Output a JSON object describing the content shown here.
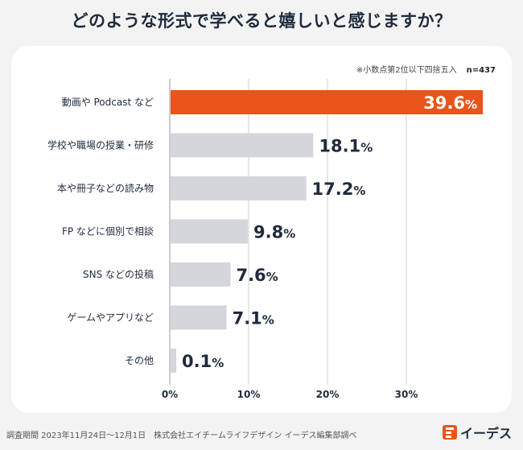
{
  "title": "どのような形式で学べると嬉しいと感じますか？",
  "note": "※小数点第2位以下四捨五入",
  "sample": "n=437",
  "footer": "調査期間 2023年11月24日〜12月1日　株式会社エイチームライフデザイン イーデス編集部調べ",
  "brand": "イーデス",
  "colors": {
    "highlight": "#e8541a",
    "bar": "#d5d6db",
    "grid": "#cfcfcf",
    "text": "#1f2a3c"
  },
  "chart_data": {
    "type": "bar",
    "orientation": "horizontal",
    "categories": [
      "動画や Podcast など",
      "学校や職場の授業・研修",
      "本や冊子などの読み物",
      "FP などに個別で相談",
      "SNS などの投稿",
      "ゲームやアプリなど",
      "その他"
    ],
    "values": [
      39.6,
      18.1,
      17.2,
      9.8,
      7.6,
      7.1,
      0.1
    ],
    "value_labels": [
      "39.6",
      "18.1",
      "17.2",
      "9.8",
      "7.6",
      "7.1",
      "0.1"
    ],
    "unit": "%",
    "xlim": [
      0,
      40
    ],
    "ticks": [
      0,
      10,
      20,
      30
    ],
    "tick_labels": [
      "0%",
      "10%",
      "20%",
      "30%"
    ],
    "grid": true
  }
}
